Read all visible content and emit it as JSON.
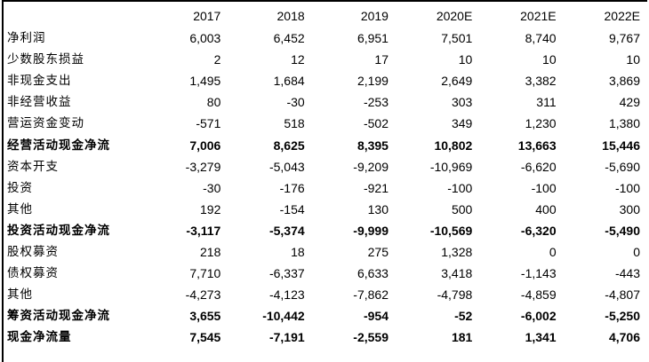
{
  "table": {
    "header": [
      "",
      "2017",
      "2018",
      "2019",
      "2020E",
      "2021E",
      "2022E"
    ],
    "rows": [
      {
        "label": "净利润",
        "values": [
          "6,003",
          "6,452",
          "6,951",
          "7,501",
          "8,740",
          "9,767"
        ],
        "bold": false
      },
      {
        "label": "少数股东损益",
        "values": [
          "2",
          "12",
          "17",
          "10",
          "10",
          "10"
        ],
        "bold": false
      },
      {
        "label": "非现金支出",
        "values": [
          "1,495",
          "1,684",
          "2,199",
          "2,649",
          "3,382",
          "3,869"
        ],
        "bold": false
      },
      {
        "label": "非经营收益",
        "values": [
          "80",
          "-30",
          "-253",
          "303",
          "311",
          "429"
        ],
        "bold": false
      },
      {
        "label": "营运资金变动",
        "values": [
          "-571",
          "518",
          "-502",
          "349",
          "1,230",
          "1,380"
        ],
        "bold": false
      },
      {
        "label": "经营活动现金净流",
        "values": [
          "7,006",
          "8,625",
          "8,395",
          "10,802",
          "13,663",
          "15,446"
        ],
        "bold": true
      },
      {
        "label": "资本开支",
        "values": [
          "-3,279",
          "-5,043",
          "-9,209",
          "-10,969",
          "-6,620",
          "-5,690"
        ],
        "bold": false
      },
      {
        "label": "投资",
        "values": [
          "-30",
          "-176",
          "-921",
          "-100",
          "-100",
          "-100"
        ],
        "bold": false
      },
      {
        "label": "其他",
        "values": [
          "192",
          "-154",
          "130",
          "500",
          "400",
          "300"
        ],
        "bold": false
      },
      {
        "label": "投资活动现金净流",
        "values": [
          "-3,117",
          "-5,374",
          "-9,999",
          "-10,569",
          "-6,320",
          "-5,490"
        ],
        "bold": true
      },
      {
        "label": "股权募资",
        "values": [
          "218",
          "18",
          "275",
          "1,328",
          "0",
          "0"
        ],
        "bold": false
      },
      {
        "label": "债权募资",
        "values": [
          "7,710",
          "-6,337",
          "6,633",
          "3,418",
          "-1,143",
          "-443"
        ],
        "bold": false
      },
      {
        "label": "其他",
        "values": [
          "-4,273",
          "-4,123",
          "-7,862",
          "-4,798",
          "-4,859",
          "-4,807"
        ],
        "bold": false
      },
      {
        "label": "筹资活动现金净流",
        "values": [
          "3,655",
          "-10,442",
          "-954",
          "-52",
          "-6,002",
          "-5,250"
        ],
        "bold": true
      },
      {
        "label": "现金净流量",
        "values": [
          "7,545",
          "-7,191",
          "-2,559",
          "181",
          "1,341",
          "4,706"
        ],
        "bold": true
      }
    ]
  }
}
